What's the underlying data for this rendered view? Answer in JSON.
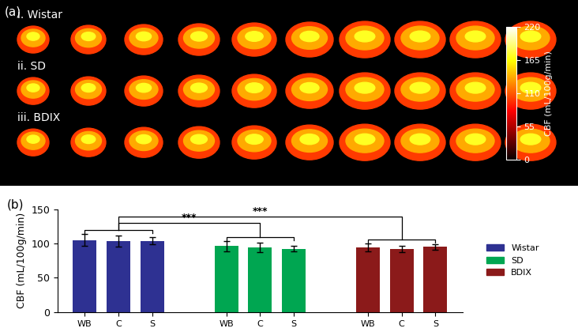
{
  "chart_data": [
    {
      "type": "image",
      "panel_label": "(a)",
      "rows": [
        "i. Wistar",
        "ii. SD",
        "iii. BDIX"
      ],
      "colorbar": {
        "label": "CBF (mL/100g/min)",
        "range": [
          0,
          220
        ],
        "ticks": [
          0,
          55,
          110,
          165,
          220
        ]
      }
    },
    {
      "type": "bar",
      "panel_label": "(b)",
      "y_label": "CBF (mL/100g/min)",
      "categories": [
        "WB",
        "C",
        "S"
      ],
      "series": [
        {
          "name": "Wistar",
          "color": "#2e3192",
          "values": [
            105,
            103,
            104
          ],
          "errors": [
            9,
            8,
            5
          ]
        },
        {
          "name": "SD",
          "color": "#00a651",
          "values": [
            96,
            94,
            92
          ],
          "errors": [
            7,
            7,
            4
          ]
        },
        {
          "name": "BDIX",
          "color": "#8b1a1a",
          "values": [
            94,
            92,
            95
          ],
          "errors": [
            6,
            5,
            4
          ]
        }
      ],
      "ylim": [
        0,
        150
      ],
      "yticks": [
        0,
        50,
        100,
        150
      ],
      "legend": "right",
      "annotations": [
        {
          "text": "***",
          "groups": [
            "Wistar",
            "SD"
          ]
        },
        {
          "text": "***",
          "groups": [
            "Wistar",
            "BDIX"
          ]
        }
      ]
    }
  ]
}
